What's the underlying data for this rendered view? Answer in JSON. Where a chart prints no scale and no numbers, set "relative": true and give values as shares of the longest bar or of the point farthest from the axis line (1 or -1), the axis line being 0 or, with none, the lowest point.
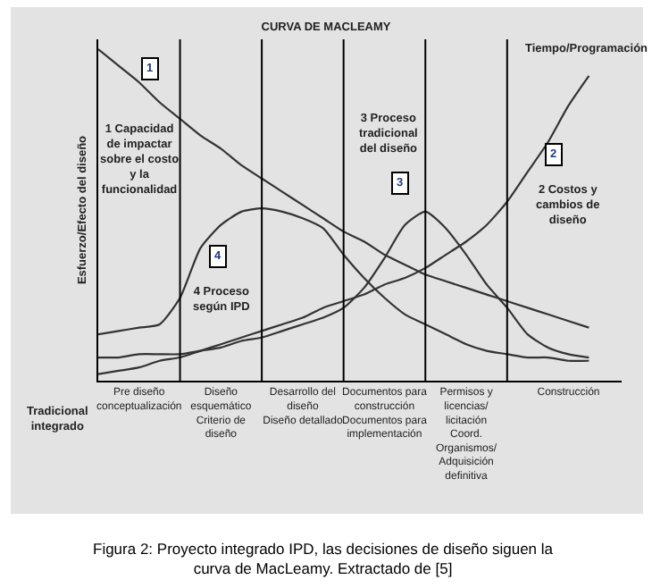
{
  "chart_data": {
    "type": "line",
    "title": "CURVA DE MACLEAMY",
    "ylabel": "Esfuerzo/Efecto del diseño",
    "relative": true,
    "legend": false,
    "grid": "x",
    "marker": "none",
    "line_style": "solid",
    "categories": [
      null,
      null,
      "Pre diseño\nconceptualización",
      null,
      null,
      null,
      "Diseño\nesquemático\nCriterio de\ndiseño",
      null,
      null,
      null,
      "Desarrollo del\ndiseño\nDiseño detallado",
      null,
      null,
      null,
      "Documentos para\nconstrucción\nDocumentos para\nimplementación",
      null,
      null,
      null,
      "Permisos y\nlicencias/\nlicitación\nCoord.\nOrganismos/\nAdquisición\ndefinitiva",
      null,
      null,
      null,
      null,
      "Construcción",
      null
    ],
    "tick_labels": "x",
    "series": [
      {
        "color": "#333333",
        "values": [
          1.0,
          0.95,
          0.9,
          0.84,
          0.79,
          0.74,
          0.7,
          0.65,
          0.61,
          0.57,
          0.53,
          0.49,
          0.45,
          0.42,
          0.38,
          0.35,
          0.32,
          0.3,
          0.28,
          0.26,
          0.24,
          0.22,
          0.2,
          0.18,
          0.16
        ]
      },
      {
        "color": "#333333",
        "values": [
          0.02,
          0.03,
          0.04,
          0.06,
          0.07,
          0.09,
          0.11,
          0.13,
          0.15,
          0.17,
          0.19,
          0.22,
          0.24,
          0.26,
          0.29,
          0.31,
          0.34,
          0.38,
          0.42,
          0.47,
          0.54,
          0.63,
          0.72,
          0.83,
          0.92
        ]
      },
      {
        "color": "#333333",
        "values": [
          0.07,
          0.07,
          0.08,
          0.08,
          0.08,
          0.09,
          0.1,
          0.12,
          0.13,
          0.15,
          0.17,
          0.19,
          0.22,
          0.28,
          0.37,
          0.47,
          0.51,
          0.46,
          0.38,
          0.29,
          0.22,
          0.14,
          0.1,
          0.08,
          0.07
        ]
      },
      {
        "color": "#333333",
        "values": [
          0.14,
          0.15,
          0.16,
          0.17,
          0.25,
          0.4,
          0.47,
          0.51,
          0.52,
          0.51,
          0.49,
          0.46,
          0.38,
          0.31,
          0.25,
          0.2,
          0.17,
          0.14,
          0.11,
          0.09,
          0.08,
          0.07,
          0.07,
          0.06,
          0.06
        ]
      }
    ],
    "annotations": [
      "1",
      "1 Capacidad\nde impactar\nsobre el costo\ny la\nfuncionalidad",
      "2",
      "2 Costos y\ncambios de\ndiseño",
      "3",
      "3 Proceso\ntradicional\ndel diseño",
      "4",
      "4 Proceso\nsegún IPD",
      "Tiempo/Programación",
      "Tradicional\nintegrado",
      "Figura 2: Proyecto integrado IPD, las decisiones de diseño siguen la\ncurva de MacLeamy. Extractado de [5]"
    ]
  }
}
